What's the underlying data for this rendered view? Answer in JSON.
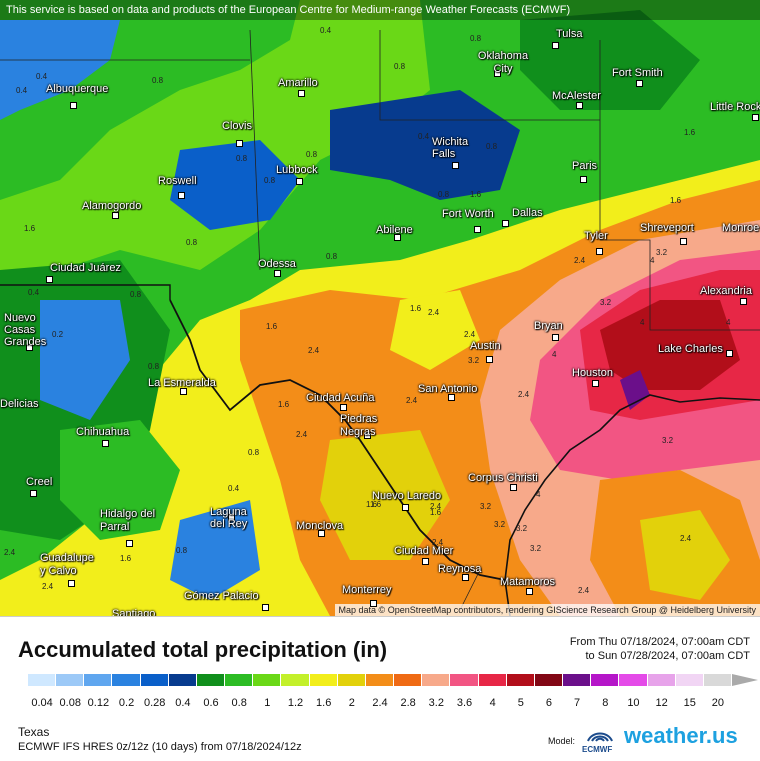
{
  "banner": "This service is based on data and products of the European Centre for Medium-range Weather Forecasts (ECMWF)",
  "attribution": "Map data © OpenStreetMap contributors, rendering GIScience Research Group @ Heidelberg University",
  "title": "Accumulated total precipitation (in)",
  "date_from": "From Thu 07/18/2024, 07:00am CDT",
  "date_to": "to Sun 07/28/2024, 07:00am CDT",
  "region": "Texas",
  "model_run": "ECMWF IFS HRES 0z/12z (10 days) from 07/18/2024/12z",
  "model_label": "Model:",
  "ecmwf_logo_text": "ECMWF",
  "brand": "weather.us",
  "colorbar": {
    "ticks": [
      "0.04",
      "0.08",
      "0.12",
      "0.2",
      "0.28",
      "0.4",
      "0.6",
      "0.8",
      "1",
      "1.2",
      "1.6",
      "2",
      "2.4",
      "2.8",
      "3.2",
      "3.6",
      "4",
      "5",
      "6",
      "7",
      "8",
      "10",
      "12",
      "15",
      "20"
    ],
    "colors": [
      "#cfe8ff",
      "#9cc9f7",
      "#5fa6ef",
      "#2a82e0",
      "#0a5fc9",
      "#073b8e",
      "#108f1c",
      "#2cbc24",
      "#6ad817",
      "#c3f02a",
      "#f2ee1b",
      "#e2d10b",
      "#f38d18",
      "#ef6a14",
      "#f7a98a",
      "#f25583",
      "#e72746",
      "#b20e1a",
      "#820715",
      "#6b0f8a",
      "#b516c9",
      "#e44be8",
      "#e7a3ea",
      "#f1d5f4",
      "#d9d9d9"
    ]
  },
  "cities": [
    {
      "name": "Tulsa"
    },
    {
      "name": "Oklahoma City"
    },
    {
      "name": "Albuquerque"
    },
    {
      "name": "Amarillo"
    },
    {
      "name": "Fort Smith"
    },
    {
      "name": "McAlester"
    },
    {
      "name": "Little Rock"
    },
    {
      "name": "Clovis"
    },
    {
      "name": "Wichita Falls"
    },
    {
      "name": "Lubbock"
    },
    {
      "name": "Roswell"
    },
    {
      "name": "Paris"
    },
    {
      "name": "Alamogordo"
    },
    {
      "name": "Fort Worth"
    },
    {
      "name": "Dallas"
    },
    {
      "name": "Shreveport"
    },
    {
      "name": "Abilene"
    },
    {
      "name": "Tyler"
    },
    {
      "name": "Monroe"
    },
    {
      "name": "Ciudad Juárez"
    },
    {
      "name": "Odessa"
    },
    {
      "name": "Alexandria"
    },
    {
      "name": "Nuevo Casas Grandes"
    },
    {
      "name": "Bryan"
    },
    {
      "name": "Austin"
    },
    {
      "name": "Lake Charles"
    },
    {
      "name": "La Esmeralda"
    },
    {
      "name": "Houston"
    },
    {
      "name": "San Antonio"
    },
    {
      "name": "Ciudad Acuña"
    },
    {
      "name": "Piedras Negras"
    },
    {
      "name": "Chihuahua"
    },
    {
      "name": "Delicias"
    },
    {
      "name": "Corpus Christi"
    },
    {
      "name": "Nuevo Laredo"
    },
    {
      "name": "Creel"
    },
    {
      "name": "Hidalgo del Parral"
    },
    {
      "name": "Laguna del Rey"
    },
    {
      "name": "Monclova"
    },
    {
      "name": "Ciudad Mier"
    },
    {
      "name": "Reynosa"
    },
    {
      "name": "Guadalupe y Calvo"
    },
    {
      "name": "Matamoros"
    },
    {
      "name": "Gómez Palacio"
    },
    {
      "name": "Monterrey"
    },
    {
      "name": "Santiago"
    }
  ],
  "contour_labels": [
    "0.4",
    "0.8",
    "0.4",
    "0.4",
    "0.8",
    "0.8",
    "0.8",
    "0.8",
    "1.6",
    "1.6",
    "0.8",
    "0.8",
    "0.8",
    "0.8",
    "1.6",
    "1.6",
    "0.8",
    "0.4",
    "0.4",
    "0.2",
    "0.8",
    "1.6",
    "2.4",
    "2.4",
    "1.6",
    "2.4",
    "3.2",
    "2.4",
    "3.2",
    "4",
    "4",
    "2.4",
    "1.6",
    "2.4",
    "2.4",
    "3.2",
    "4",
    "2.4",
    "4",
    "3.2",
    "4",
    "3.2",
    "2.4",
    "1.6",
    "1.6",
    "3.2",
    "2.4",
    "3.2",
    "3.2",
    "2.4",
    "2.4",
    "0.8",
    "0.8",
    "0.4",
    "2.4",
    "1.6",
    "0.8",
    "1.6"
  ]
}
